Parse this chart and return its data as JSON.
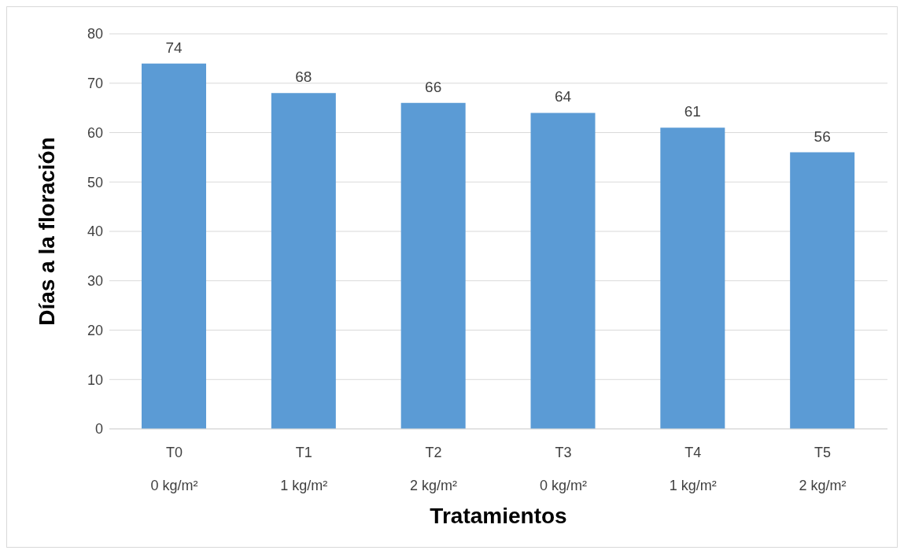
{
  "chart_data": {
    "type": "bar",
    "xlabel": "Tratamientos",
    "ylabel": "Días a la floración",
    "categories": [
      "T0\n0 kg/m²",
      "T1\n1 kg/m²",
      "T2\n2 kg/m²",
      "T3\n0 kg/m²",
      "T4\n1 kg/m²",
      "T5\n2 kg/m²"
    ],
    "values": [
      74,
      68,
      66,
      64,
      61,
      56
    ],
    "color": "#5b9bd5",
    "ylim": [
      0,
      80
    ],
    "yticks": [
      0,
      10,
      20,
      30,
      40,
      50,
      60,
      70,
      80
    ],
    "grid": "y",
    "data_labels": true
  }
}
